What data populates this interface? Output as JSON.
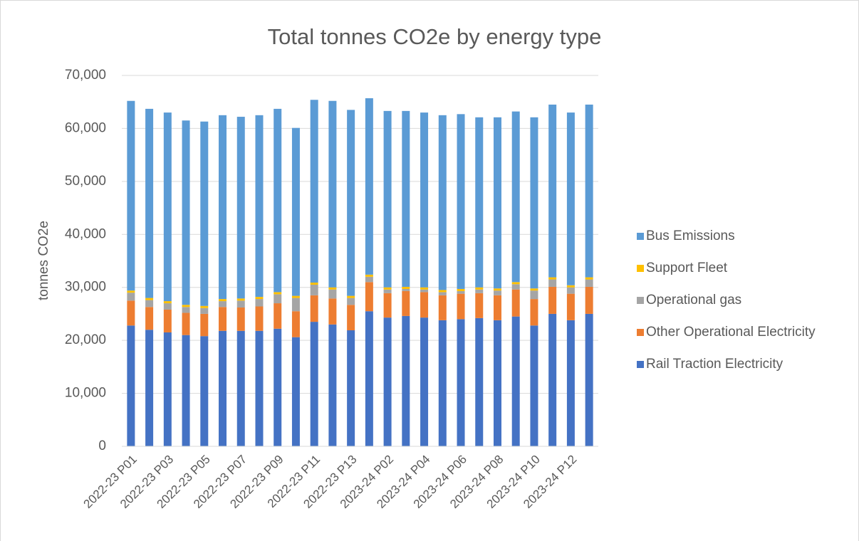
{
  "chart_data": {
    "type": "stacked_bar",
    "title": "Total tonnes CO2e by energy type",
    "y_label": "tonnes CO2e",
    "categories": [
      "2022-23 P01",
      null,
      "2022-23 P03",
      null,
      "2022-23 P05",
      null,
      "2022-23 P07",
      null,
      "2022-23 P09",
      null,
      "2022-23 P11",
      null,
      "2022-23 P13",
      null,
      "2023-24 P02",
      null,
      "2023-24 P04",
      null,
      "2023-24 P06",
      null,
      "2023-24 P08",
      null,
      "2023-24 P10",
      null,
      "2023-24 P12",
      null
    ],
    "series": [
      {
        "name": "Rail Traction Electricity",
        "color": "#4472c4",
        "values": [
          22800,
          22000,
          21500,
          21000,
          20800,
          21800,
          21800,
          21800,
          22200,
          20600,
          23500,
          23000,
          21900,
          25500,
          24300,
          24600,
          24300,
          23800,
          24000,
          24200,
          23800,
          24500,
          22800,
          25000,
          23800,
          25000
        ]
      },
      {
        "name": "Other Operational Electricity",
        "color": "#ed7d31",
        "values": [
          4700,
          4300,
          4300,
          4200,
          4200,
          4500,
          4400,
          4600,
          4800,
          4900,
          5000,
          4900,
          4800,
          5500,
          4600,
          4700,
          4800,
          4700,
          4800,
          4700,
          4700,
          5100,
          5000,
          5100,
          5000,
          5100
        ]
      },
      {
        "name": "Operational gas",
        "color": "#a5a5a5",
        "values": [
          1500,
          1300,
          1200,
          1100,
          1100,
          1100,
          1300,
          1400,
          1700,
          2500,
          2000,
          1700,
          1300,
          1000,
          700,
          400,
          500,
          600,
          500,
          700,
          900,
          1000,
          1600,
          1400,
          1200,
          1400
        ]
      },
      {
        "name": "Support Fleet",
        "color": "#ffc000",
        "values": [
          400,
          400,
          400,
          400,
          400,
          400,
          400,
          400,
          400,
          400,
          400,
          400,
          400,
          400,
          400,
          400,
          400,
          400,
          400,
          400,
          400,
          400,
          400,
          400,
          400,
          400
        ]
      },
      {
        "name": "Bus Emissions",
        "color": "#5b9bd5",
        "values": [
          35800,
          35700,
          35600,
          34800,
          34800,
          34700,
          34300,
          34300,
          34600,
          31700,
          34500,
          35200,
          35100,
          33300,
          33300,
          33200,
          33000,
          33000,
          33000,
          32100,
          32300,
          32200,
          32300,
          32600,
          32600,
          32600
        ]
      }
    ],
    "ylim": [
      0,
      70000
    ],
    "yticks": [
      0,
      {
        "value": 10000,
        "label": "10,000"
      },
      {
        "value": 20000,
        "label": "20,000"
      },
      {
        "value": 30000,
        "label": "30,000"
      },
      {
        "value": 40000,
        "label": "40,000"
      },
      {
        "value": 50000,
        "label": "50,000"
      },
      {
        "value": 60000,
        "label": "60,000"
      },
      {
        "value": 70000,
        "label": "70,000"
      }
    ],
    "grid": true,
    "legend": "right"
  }
}
